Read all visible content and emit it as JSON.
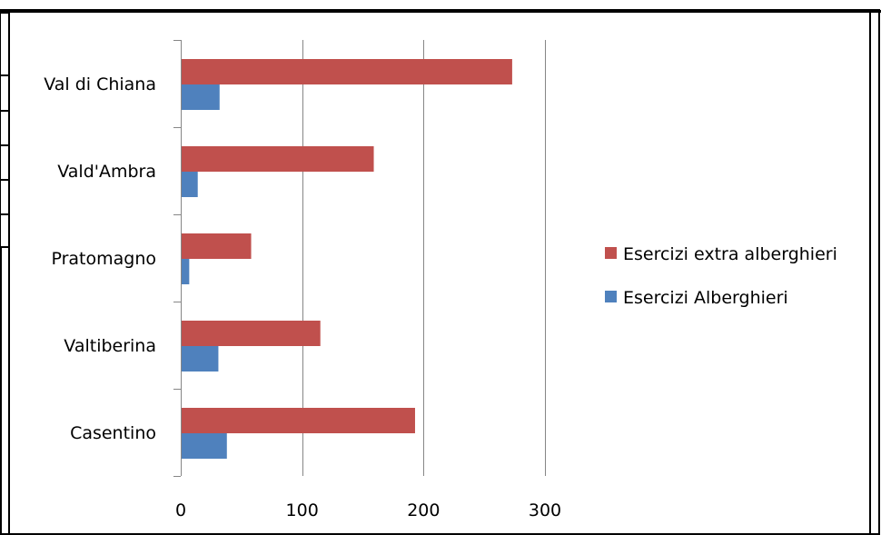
{
  "chart_data": {
    "type": "bar",
    "orientation": "horizontal",
    "categories": [
      "Val di Chiana",
      "Vald'Ambra",
      "Pratomagno",
      "Valtiberina",
      "Casentino"
    ],
    "series": [
      {
        "name": "Esercizi extra alberghieri",
        "color": "#C0504D",
        "values": [
          273,
          159,
          58,
          115,
          193
        ]
      },
      {
        "name": "Esercizi Alberghieri",
        "color": "#4F81BD",
        "values": [
          32,
          14,
          7,
          31,
          38
        ]
      }
    ],
    "xlim": [
      0,
      300
    ],
    "xticks": [
      0,
      100,
      200,
      300
    ],
    "title": "",
    "xlabel": "",
    "ylabel": "",
    "grid": "vertical",
    "legend_position": "right"
  }
}
